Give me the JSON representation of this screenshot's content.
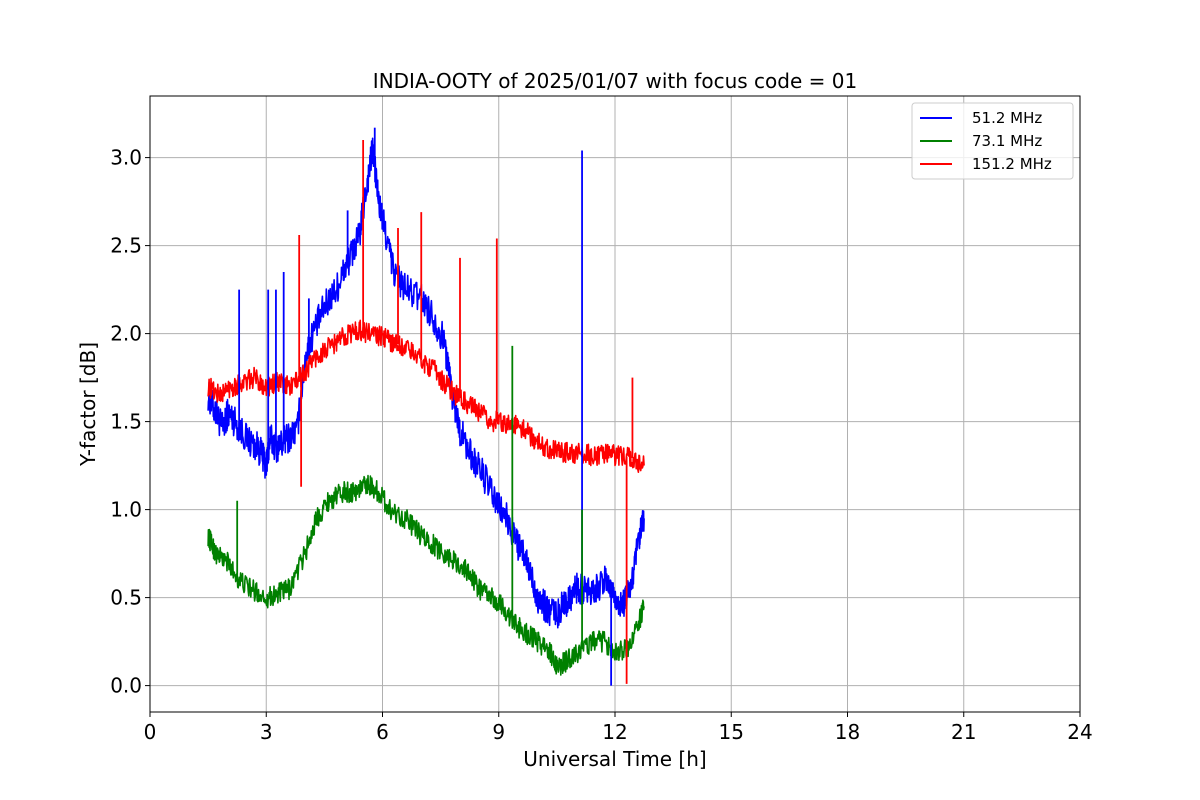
{
  "chart_data": {
    "type": "line",
    "title": "INDIA-OOTY of 2025/01/07 with focus code = 01",
    "xlabel": "Universal Time [h]",
    "ylabel": "Y-factor [dB]",
    "xlim": [
      0,
      24
    ],
    "ylim": [
      -0.15,
      3.35
    ],
    "xticks": [
      "0",
      "3",
      "6",
      "9",
      "12",
      "15",
      "18",
      "21",
      "24"
    ],
    "yticks": [
      "0.0",
      "0.5",
      "1.0",
      "1.5",
      "2.0",
      "2.5",
      "3.0"
    ],
    "grid": true,
    "legend_position": "top-right",
    "series": [
      {
        "name": "51.2 MHz",
        "color": "#0000ff",
        "x": [
          1.5,
          1.7,
          1.9,
          2.0,
          2.2,
          2.5,
          2.8,
          3.0,
          3.1,
          3.3,
          3.5,
          3.8,
          4.0,
          4.2,
          4.5,
          4.8,
          5.0,
          5.2,
          5.4,
          5.6,
          5.75,
          5.9,
          6.1,
          6.3,
          6.6,
          7.0,
          7.3,
          7.6,
          7.8,
          8.0,
          8.3,
          8.6,
          8.9,
          9.2,
          9.5,
          9.8,
          10.0,
          10.2,
          10.5,
          10.8,
          11.0,
          11.2,
          11.5,
          11.8,
          12.0,
          12.2,
          12.4,
          12.6,
          12.75
        ],
        "values": [
          1.65,
          1.55,
          1.45,
          1.55,
          1.5,
          1.4,
          1.35,
          1.25,
          1.4,
          1.35,
          1.4,
          1.45,
          1.85,
          2.0,
          2.15,
          2.25,
          2.35,
          2.45,
          2.55,
          2.85,
          3.05,
          2.75,
          2.55,
          2.35,
          2.25,
          2.2,
          2.1,
          1.95,
          1.65,
          1.45,
          1.3,
          1.2,
          1.05,
          0.95,
          0.8,
          0.65,
          0.5,
          0.45,
          0.4,
          0.5,
          0.55,
          0.55,
          0.55,
          0.6,
          0.5,
          0.45,
          0.55,
          0.8,
          0.95
        ]
      },
      {
        "name": "73.1 MHz",
        "color": "#008000",
        "x": [
          1.5,
          1.7,
          2.0,
          2.3,
          2.6,
          3.0,
          3.3,
          3.6,
          4.0,
          4.3,
          4.6,
          5.0,
          5.3,
          5.6,
          5.9,
          6.2,
          6.6,
          7.0,
          7.3,
          7.6,
          7.9,
          8.2,
          8.5,
          8.8,
          9.1,
          9.4,
          9.7,
          10.0,
          10.3,
          10.5,
          10.8,
          11.1,
          11.4,
          11.7,
          12.0,
          12.3,
          12.6,
          12.75
        ],
        "values": [
          0.85,
          0.75,
          0.7,
          0.6,
          0.55,
          0.5,
          0.52,
          0.55,
          0.75,
          0.95,
          1.05,
          1.1,
          1.1,
          1.15,
          1.1,
          1.0,
          0.95,
          0.85,
          0.8,
          0.75,
          0.7,
          0.65,
          0.55,
          0.5,
          0.45,
          0.35,
          0.3,
          0.25,
          0.2,
          0.1,
          0.15,
          0.2,
          0.25,
          0.25,
          0.2,
          0.2,
          0.35,
          0.45
        ]
      },
      {
        "name": "151.2 MHz",
        "color": "#ff0000",
        "x": [
          1.5,
          1.8,
          2.1,
          2.4,
          2.7,
          3.0,
          3.3,
          3.6,
          3.9,
          4.2,
          4.5,
          4.8,
          5.1,
          5.4,
          5.7,
          6.0,
          6.3,
          6.6,
          7.0,
          7.3,
          7.6,
          7.9,
          8.2,
          8.5,
          8.8,
          9.1,
          9.4,
          9.7,
          10.0,
          10.3,
          10.6,
          10.9,
          11.2,
          11.5,
          11.8,
          12.1,
          12.4,
          12.75
        ],
        "values": [
          1.7,
          1.65,
          1.7,
          1.72,
          1.75,
          1.7,
          1.72,
          1.7,
          1.75,
          1.85,
          1.9,
          1.95,
          2.0,
          2.02,
          2.0,
          1.98,
          1.95,
          1.92,
          1.85,
          1.8,
          1.72,
          1.65,
          1.6,
          1.55,
          1.5,
          1.5,
          1.48,
          1.45,
          1.38,
          1.35,
          1.33,
          1.32,
          1.32,
          1.3,
          1.32,
          1.3,
          1.3,
          1.25
        ]
      }
    ],
    "spikes": [
      {
        "series": 0,
        "x": 2.3,
        "y": 2.25
      },
      {
        "series": 0,
        "x": 3.05,
        "y": 2.25
      },
      {
        "series": 0,
        "x": 3.25,
        "y": 2.25
      },
      {
        "series": 0,
        "x": 3.45,
        "y": 2.35
      },
      {
        "series": 0,
        "x": 4.1,
        "y": 2.2
      },
      {
        "series": 0,
        "x": 5.1,
        "y": 2.7
      },
      {
        "series": 0,
        "x": 5.8,
        "y": 3.17
      },
      {
        "series": 0,
        "x": 11.15,
        "y": 3.04
      },
      {
        "series": 0,
        "x": 11.9,
        "y": 0.0
      },
      {
        "series": 1,
        "x": 2.25,
        "y": 1.05
      },
      {
        "series": 1,
        "x": 9.35,
        "y": 1.93
      },
      {
        "series": 1,
        "x": 11.15,
        "y": 1.0
      },
      {
        "series": 2,
        "x": 3.85,
        "y": 2.56
      },
      {
        "series": 2,
        "x": 3.9,
        "y": 1.13
      },
      {
        "series": 2,
        "x": 5.5,
        "y": 3.1
      },
      {
        "series": 2,
        "x": 6.4,
        "y": 2.6
      },
      {
        "series": 2,
        "x": 7.0,
        "y": 2.69
      },
      {
        "series": 2,
        "x": 8.0,
        "y": 2.43
      },
      {
        "series": 2,
        "x": 8.95,
        "y": 2.54
      },
      {
        "series": 2,
        "x": 12.3,
        "y": 0.01
      },
      {
        "series": 2,
        "x": 12.45,
        "y": 1.75
      }
    ]
  }
}
